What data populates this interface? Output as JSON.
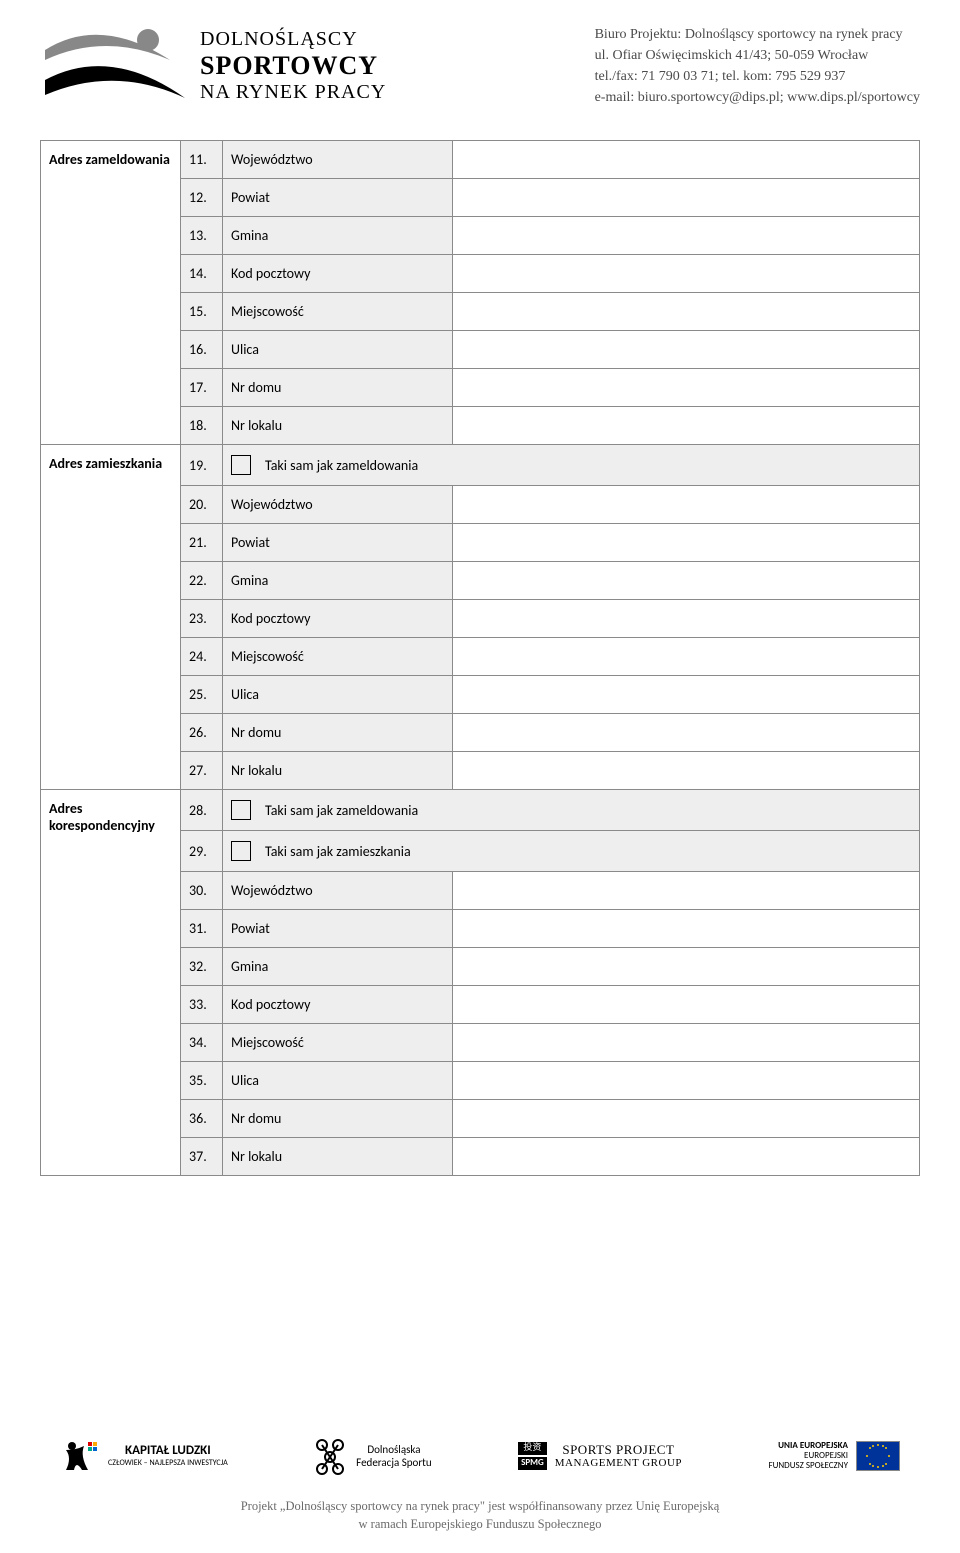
{
  "header": {
    "logo_lines": [
      "DOLNOŚLĄSCY",
      "SPORTOWCY",
      "NA RYNEK PRACY"
    ],
    "contact": [
      "Biuro Projektu: Dolnośląscy sportowcy na rynek pracy",
      "ul. Ofiar Oświęcimskich 41/43; 50-059 Wrocław",
      "tel./fax: 71 790 03 71; tel. kom: 795 529 937",
      "e-mail: biuro.sportowcy@dips.pl; www.dips.pl/sportowcy"
    ]
  },
  "sections": [
    {
      "title": "Adres zameldowania",
      "rows": [
        {
          "num": "11.",
          "label": "Województwo",
          "hasValue": true
        },
        {
          "num": "12.",
          "label": "Powiat",
          "hasValue": true
        },
        {
          "num": "13.",
          "label": "Gmina",
          "hasValue": true
        },
        {
          "num": "14.",
          "label": "Kod pocztowy",
          "hasValue": true
        },
        {
          "num": "15.",
          "label": "Miejscowość",
          "hasValue": true
        },
        {
          "num": "16.",
          "label": "Ulica",
          "hasValue": true
        },
        {
          "num": "17.",
          "label": "Nr domu",
          "hasValue": true
        },
        {
          "num": "18.",
          "label": "Nr lokalu",
          "hasValue": true
        }
      ]
    },
    {
      "title": "Adres zamieszkania",
      "rows": [
        {
          "num": "19.",
          "checkbox": true,
          "label": "Taki sam jak zameldowania",
          "hasValue": false
        },
        {
          "num": "20.",
          "label": "Województwo",
          "hasValue": true
        },
        {
          "num": "21.",
          "label": "Powiat",
          "hasValue": true
        },
        {
          "num": "22.",
          "label": "Gmina",
          "hasValue": true
        },
        {
          "num": "23.",
          "label": "Kod pocztowy",
          "hasValue": true
        },
        {
          "num": "24.",
          "label": "Miejscowość",
          "hasValue": true
        },
        {
          "num": "25.",
          "label": "Ulica",
          "hasValue": true
        },
        {
          "num": "26.",
          "label": "Nr domu",
          "hasValue": true
        },
        {
          "num": "27.",
          "label": "Nr lokalu",
          "hasValue": true
        }
      ]
    },
    {
      "title": "Adres korespondencyjny",
      "rows": [
        {
          "num": "28.",
          "checkbox": true,
          "label": "Taki sam jak zameldowania",
          "hasValue": false
        },
        {
          "num": "29.",
          "checkbox": true,
          "label": "Taki sam jak zamieszkania",
          "hasValue": false
        },
        {
          "num": "30.",
          "label": "Województwo",
          "hasValue": true
        },
        {
          "num": "31.",
          "label": "Powiat",
          "hasValue": true
        },
        {
          "num": "32.",
          "label": "Gmina",
          "hasValue": true
        },
        {
          "num": "33.",
          "label": "Kod pocztowy",
          "hasValue": true
        },
        {
          "num": "34.",
          "label": "Miejscowość",
          "hasValue": true
        },
        {
          "num": "35.",
          "label": "Ulica",
          "hasValue": true
        },
        {
          "num": "36.",
          "label": "Nr domu",
          "hasValue": true
        },
        {
          "num": "37.",
          "label": "Nr lokalu",
          "hasValue": true
        }
      ]
    }
  ],
  "footer": {
    "kl_title": "KAPITAŁ LUDZKI",
    "kl_sub": "CZŁOWIEK – NAJLEPSZA INWESTYCJA",
    "dfs_l1": "Dolnośląska",
    "dfs_l2": "Federacja Sportu",
    "spmg_l1": "SPORTS PROJECT",
    "spmg_l2": "MANAGEMENT GROUP",
    "ue_l1": "UNIA EUROPEJSKA",
    "ue_l2": "EUROPEJSKI",
    "ue_l3": "FUNDUSZ SPOŁECZNY",
    "text_l1": "Projekt „Dolnośląscy sportowcy na rynek pracy\" jest współfinansowany przez Unię Europejską",
    "text_l2": "w ramach Europejskiego Funduszu Społecznego"
  },
  "colors": {
    "cell_bg": "#eeeeee",
    "border": "#8a8a8a",
    "text": "#000000",
    "header_grey": "#4a4a4a",
    "logo_grey": "#888888"
  }
}
